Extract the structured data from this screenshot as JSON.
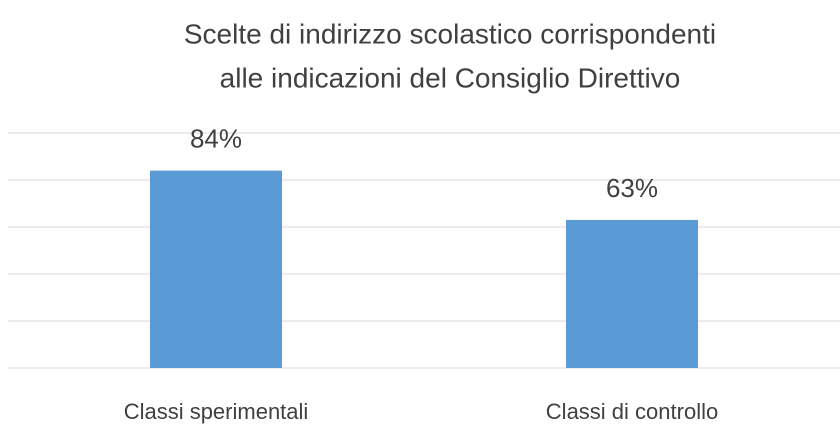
{
  "chart_data": {
    "type": "bar",
    "title": [
      "Scelte di indirizzo scolastico corrispondenti",
      "alle indicazioni del Consiglio Direttivo"
    ],
    "categories": [
      "Classi sperimentali",
      "Classi di controllo"
    ],
    "values": [
      84,
      63
    ],
    "value_labels": [
      "84%",
      "63%"
    ],
    "color": "#5b9bd5",
    "ylim": [
      0,
      100
    ],
    "yticks": [
      0,
      20,
      40,
      60,
      80,
      100
    ],
    "grid": true
  }
}
